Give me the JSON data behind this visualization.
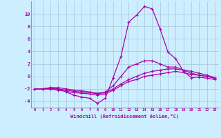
{
  "title": "",
  "xlabel": "Windchill (Refroidissement éolien,°C)",
  "ylabel": "",
  "bg_color": "#cceeff",
  "grid_color": "#aaccdd",
  "line_color": "#aa00aa",
  "xlim": [
    -0.5,
    23.5
  ],
  "ylim": [
    -5,
    12
  ],
  "xticks": [
    0,
    1,
    2,
    3,
    4,
    5,
    6,
    7,
    8,
    9,
    10,
    11,
    12,
    13,
    14,
    15,
    16,
    17,
    18,
    19,
    20,
    21,
    22,
    23
  ],
  "yticks": [
    -4,
    -2,
    0,
    2,
    4,
    6,
    8,
    10
  ],
  "series": [
    [
      -2,
      -2,
      -2,
      -2,
      -2.5,
      -3,
      -3.3,
      -3.5,
      -4.3,
      -3.5,
      -0.2,
      3.2,
      8.7,
      9.8,
      11.2,
      10.8,
      7.6,
      3.9,
      2.8,
      0.8,
      -0.2,
      -0.1,
      -0.3,
      -0.5
    ],
    [
      -2,
      -2,
      -1.8,
      -1.8,
      -2,
      -2.2,
      -2.3,
      -2.5,
      -2.7,
      -2.5,
      -1.5,
      0,
      1.5,
      2,
      2.5,
      2.5,
      2,
      1.5,
      1.5,
      1,
      0.5,
      0.2,
      0,
      -0.3
    ],
    [
      -2,
      -2,
      -1.8,
      -2,
      -2.2,
      -2.4,
      -2.5,
      -2.6,
      -2.8,
      -2.6,
      -2,
      -1.2,
      -0.5,
      0,
      0.5,
      0.8,
      1,
      1.2,
      1.2,
      1,
      0.8,
      0.5,
      0.2,
      -0.2
    ],
    [
      -2,
      -2,
      -2,
      -2.2,
      -2.4,
      -2.6,
      -2.7,
      -2.8,
      -3,
      -2.8,
      -2.2,
      -1.5,
      -0.8,
      -0.5,
      0,
      0.2,
      0.4,
      0.6,
      0.8,
      0.6,
      0.3,
      0.2,
      0,
      -0.3
    ]
  ]
}
